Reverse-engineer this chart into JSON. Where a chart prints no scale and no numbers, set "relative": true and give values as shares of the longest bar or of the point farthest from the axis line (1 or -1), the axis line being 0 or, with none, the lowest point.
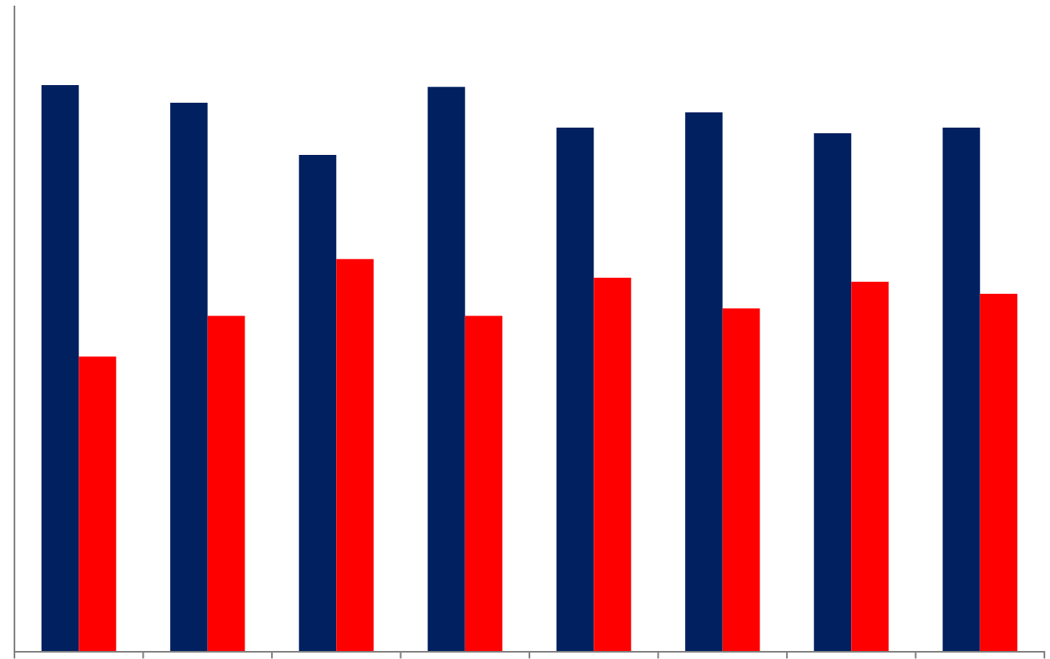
{
  "chart_data": {
    "type": "bar",
    "relative": true,
    "categories": [
      null,
      null,
      null,
      null,
      null,
      null,
      null,
      null
    ],
    "series": [
      {
        "color": "#002060",
        "values": [
          1,
          0.969,
          0.877,
          0.997,
          0.925,
          0.952,
          0.915,
          0.925
        ]
      },
      {
        "color": "#ff0000",
        "values": [
          0.521,
          0.593,
          0.693,
          0.593,
          0.66,
          0.606,
          0.653,
          0.632
        ]
      }
    ],
    "grid": false
  }
}
